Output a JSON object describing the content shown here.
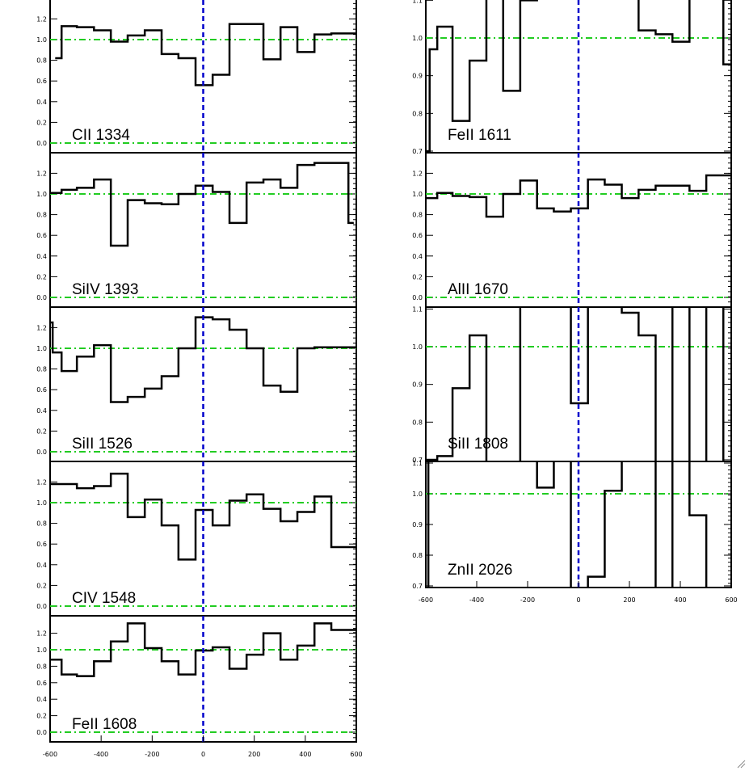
{
  "chart_data": {
    "type": "line",
    "description_free": true,
    "panels": [
      {
        "label": "CII 1334",
        "ylim": [
          0.0,
          1.35
        ],
        "yticks": [
          0.0,
          0.2,
          0.4,
          0.6,
          0.8,
          1.0,
          1.2
        ],
        "xmin": -600,
        "xmax": 600,
        "bins": [
          -580,
          -555,
          -495,
          -428,
          -362,
          -296,
          -229,
          -163,
          -97,
          -30,
          37,
          103,
          170,
          236,
          303,
          369,
          436,
          502,
          569,
          600
        ],
        "values": [
          0.82,
          1.13,
          1.12,
          1.09,
          0.98,
          1.04,
          1.09,
          0.86,
          0.82,
          0.56,
          0.66,
          1.15,
          1.15,
          0.81,
          1.12,
          0.88,
          1.05,
          1.06,
          1.06
        ]
      },
      {
        "label": "SiIV 1393",
        "ylim": [
          0.0,
          1.35
        ],
        "yticks": [
          0.0,
          0.2,
          0.4,
          0.6,
          0.8,
          1.0,
          1.2
        ],
        "xmin": -600,
        "xmax": 600,
        "bins": [
          -600,
          -555,
          -495,
          -428,
          -362,
          -296,
          -229,
          -163,
          -97,
          -30,
          37,
          103,
          170,
          236,
          303,
          369,
          436,
          502,
          569,
          590
        ],
        "values": [
          1.01,
          1.04,
          1.06,
          1.14,
          0.5,
          0.94,
          0.91,
          0.9,
          1.0,
          1.08,
          1.02,
          0.72,
          1.11,
          1.14,
          1.06,
          1.28,
          1.3,
          1.3,
          0.72
        ]
      },
      {
        "label": "SiII 1526",
        "ylim": [
          0.0,
          1.35
        ],
        "yticks": [
          0.0,
          0.2,
          0.4,
          0.6,
          0.8,
          1.0,
          1.2
        ],
        "xmin": -600,
        "xmax": 600,
        "bins": [
          -600,
          -590,
          -555,
          -495,
          -428,
          -362,
          -296,
          -229,
          -163,
          -97,
          -30,
          37,
          103,
          170,
          236,
          303,
          369,
          436,
          502,
          569,
          600
        ],
        "values": [
          1.25,
          0.96,
          0.78,
          0.92,
          1.03,
          0.48,
          0.53,
          0.61,
          0.73,
          1.0,
          1.3,
          1.28,
          1.18,
          1.0,
          0.64,
          0.58,
          1.0,
          1.01,
          1.01,
          1.01
        ]
      },
      {
        "label": "CIV 1548",
        "ylim": [
          0.0,
          1.35
        ],
        "yticks": [
          0.0,
          0.2,
          0.4,
          0.6,
          0.8,
          1.0,
          1.2
        ],
        "xmin": -600,
        "xmax": 600,
        "bins": [
          -600,
          -555,
          -495,
          -428,
          -362,
          -296,
          -229,
          -163,
          -97,
          -30,
          37,
          103,
          170,
          236,
          303,
          369,
          436,
          502,
          569,
          600
        ],
        "values": [
          1.18,
          1.18,
          1.14,
          1.16,
          1.28,
          0.86,
          1.03,
          0.78,
          0.45,
          0.93,
          0.78,
          1.02,
          1.08,
          0.94,
          0.82,
          0.91,
          1.06,
          0.57,
          0.57
        ]
      },
      {
        "label": "FeII 1608",
        "ylim": [
          0.0,
          1.35
        ],
        "yticks": [
          0.0,
          0.2,
          0.4,
          0.6,
          0.8,
          1.0,
          1.2
        ],
        "xmin": -600,
        "xmax": 600,
        "bins": [
          -600,
          -555,
          -495,
          -428,
          -362,
          -296,
          -229,
          -163,
          -97,
          -30,
          37,
          103,
          170,
          236,
          303,
          369,
          436,
          502,
          569,
          600
        ],
        "values": [
          0.88,
          0.7,
          0.68,
          0.86,
          1.1,
          1.32,
          1.02,
          0.86,
          0.7,
          0.99,
          1.03,
          0.77,
          0.94,
          1.2,
          0.88,
          1.05,
          1.32,
          1.24,
          1.24
        ]
      },
      {
        "label": "FeII 1611",
        "ylim": [
          0.7,
          1.1
        ],
        "yticks": [
          0.7,
          0.8,
          0.9,
          1.0,
          1.1
        ],
        "xmin": -600,
        "xmax": 600,
        "bins": [
          -600,
          -585,
          -555,
          -495,
          -428,
          -362,
          -296,
          -229,
          -163,
          -97,
          -30,
          37,
          103,
          170,
          236,
          303,
          369,
          436,
          502,
          569,
          588,
          600
        ],
        "values": [
          0.7,
          0.97,
          1.03,
          0.78,
          0.94,
          1.15,
          0.86,
          1.1,
          1.2,
          1.3,
          1.3,
          1.3,
          1.3,
          1.3,
          1.02,
          1.01,
          0.99,
          1.2,
          1.2,
          0.93,
          0.93
        ]
      },
      {
        "label": "AlII 1670",
        "ylim": [
          0.0,
          1.35
        ],
        "yticks": [
          0.0,
          0.2,
          0.4,
          0.6,
          0.8,
          1.0,
          1.2
        ],
        "xmin": -600,
        "xmax": 600,
        "bins": [
          -600,
          -555,
          -495,
          -428,
          -362,
          -296,
          -229,
          -163,
          -97,
          -30,
          37,
          103,
          170,
          236,
          303,
          369,
          436,
          502,
          569,
          600
        ],
        "values": [
          0.96,
          1.01,
          0.98,
          0.97,
          0.78,
          1.0,
          1.13,
          0.86,
          0.83,
          0.86,
          1.14,
          1.09,
          0.96,
          1.04,
          1.08,
          1.08,
          1.03,
          1.18,
          1.18
        ]
      },
      {
        "label": "SiII 1808",
        "ylim": [
          0.7,
          1.1
        ],
        "yticks": [
          0.7,
          0.8,
          0.9,
          1.0,
          1.1
        ],
        "xmin": -600,
        "xmax": 600,
        "bins": [
          -600,
          -555,
          -495,
          -428,
          -362,
          -296,
          -229,
          -163,
          -97,
          -30,
          37,
          103,
          170,
          236,
          303,
          369,
          436,
          502,
          569,
          600
        ],
        "values": [
          0.7,
          0.71,
          0.89,
          1.03,
          0.69,
          0.62,
          1.4,
          1.4,
          1.4,
          0.85,
          1.4,
          1.4,
          1.09,
          1.03,
          0.62,
          1.4,
          0.62,
          1.4,
          0.62
        ]
      },
      {
        "label": "ZnII 2026",
        "ylim": [
          0.7,
          1.1
        ],
        "yticks": [
          0.7,
          0.8,
          0.9,
          1.0,
          1.1
        ],
        "xmin": -600,
        "xmax": 600,
        "bins": [
          -600,
          -590,
          -555,
          -495,
          -428,
          -362,
          -296,
          -229,
          -163,
          -97,
          -30,
          37,
          103,
          170,
          236,
          303,
          369,
          436,
          502,
          569,
          600
        ],
        "values": [
          0.6,
          1.3,
          1.3,
          1.3,
          1.3,
          1.3,
          1.3,
          1.3,
          1.02,
          1.3,
          0.6,
          0.73,
          1.01,
          1.3,
          1.3,
          0.6,
          1.3,
          0.93,
          0.6,
          0.6
        ]
      }
    ],
    "xticks": [
      -600,
      -400,
      -200,
      0,
      200,
      400,
      600
    ],
    "reference_lines": {
      "continuum": 1.0,
      "zero": 0.0,
      "velocity_zero": 0
    },
    "colors": {
      "spectrum": "#000000",
      "reference": "#22cc22",
      "velocity_zero": "#0000cc"
    }
  },
  "icons": {
    "resize": "resize-grip-icon"
  }
}
